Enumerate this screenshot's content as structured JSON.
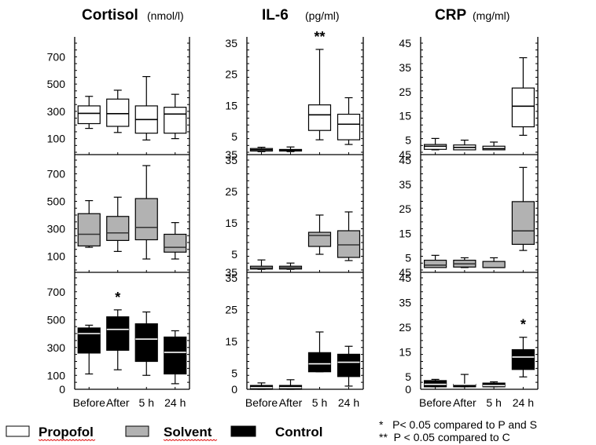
{
  "chart_data": {
    "type": "boxplot",
    "categories": [
      "Before",
      "After",
      "5 h",
      "24 h"
    ],
    "groups": [
      {
        "name": "Propofol",
        "fill": "#ffffff",
        "median_color": "#000000"
      },
      {
        "name": "Solvent",
        "fill": "#b2b2b2",
        "median_color": "#333333"
      },
      {
        "name": "Control",
        "fill": "#000000",
        "median_color": "#ffffff"
      }
    ],
    "panels": [
      {
        "id": "cortisol",
        "title": "Cortisol",
        "unit": "(nmol/l)",
        "ylim": [
          0,
          800
        ],
        "ticks": [
          100,
          300,
          500,
          700
        ],
        "bottom_ticks": [
          0,
          100,
          300,
          500,
          700
        ],
        "top_tick_labels": [
          "700",
          "700"
        ],
        "rows": [
          {
            "group": "Propofol",
            "boxes": [
              {
                "min": 175,
                "q1": 210,
                "median": 285,
                "q3": 340,
                "max": 410
              },
              {
                "min": 145,
                "q1": 190,
                "median": 283,
                "q3": 390,
                "max": 455
              },
              {
                "min": 90,
                "q1": 140,
                "median": 240,
                "q3": 340,
                "max": 555
              },
              {
                "min": 100,
                "q1": 140,
                "median": 280,
                "q3": 330,
                "max": 425
              }
            ],
            "sig": [
              null,
              null,
              null,
              null
            ]
          },
          {
            "group": "Solvent",
            "boxes": [
              {
                "min": 165,
                "q1": 175,
                "median": 260,
                "q3": 410,
                "max": 505
              },
              {
                "min": 135,
                "q1": 215,
                "median": 270,
                "q3": 390,
                "max": 530
              },
              {
                "min": 80,
                "q1": 220,
                "median": 310,
                "q3": 520,
                "max": 760
              },
              {
                "min": 80,
                "q1": 130,
                "median": 165,
                "q3": 260,
                "max": 345
              }
            ],
            "sig": [
              null,
              null,
              null,
              null
            ]
          },
          {
            "group": "Control",
            "boxes": [
              {
                "min": 110,
                "q1": 260,
                "median": 400,
                "q3": 440,
                "max": 460
              },
              {
                "min": 140,
                "q1": 280,
                "median": 430,
                "q3": 520,
                "max": 570
              },
              {
                "min": 100,
                "q1": 200,
                "median": 360,
                "q3": 470,
                "max": 555
              },
              {
                "min": 40,
                "q1": 110,
                "median": 265,
                "q3": 375,
                "max": 420
              }
            ],
            "sig": [
              null,
              "*",
              null,
              null
            ]
          }
        ]
      },
      {
        "id": "il6",
        "title": "IL-6",
        "unit": "(pg/ml)",
        "ylim": [
          0,
          35
        ],
        "ticks": [
          5,
          15,
          25,
          35
        ],
        "bottom_ticks": [
          0,
          5,
          15,
          25,
          35
        ],
        "rows": [
          {
            "group": "Propofol",
            "boxes": [
              {
                "min": 0.2,
                "q1": 0.4,
                "median": 0.8,
                "q3": 1.2,
                "max": 1.6
              },
              {
                "min": 0.2,
                "q1": 0.4,
                "median": 0.7,
                "q3": 0.9,
                "max": 1.7
              },
              {
                "min": 4,
                "q1": 7,
                "median": 12,
                "q3": 15.2,
                "max": 33
              },
              {
                "min": 2.5,
                "q1": 4,
                "median": 9,
                "q3": 12.2,
                "max": 17.5
              }
            ],
            "sig": [
              null,
              null,
              "**",
              null
            ]
          },
          {
            "group": "Solvent",
            "boxes": [
              {
                "min": 0.2,
                "q1": 0.3,
                "median": 0.6,
                "q3": 1.2,
                "max": 3.2
              },
              {
                "min": 0.2,
                "q1": 0.3,
                "median": 0.7,
                "q3": 1.2,
                "max": 2.2
              },
              {
                "min": 5,
                "q1": 7.5,
                "median": 11,
                "q3": 12,
                "max": 17.5
              },
              {
                "min": 3,
                "q1": 4,
                "median": 8,
                "q3": 12.5,
                "max": 18.5
              }
            ],
            "sig": [
              null,
              null,
              null,
              null
            ]
          },
          {
            "group": "Control",
            "boxes": [
              {
                "min": 0,
                "q1": 0,
                "median": 0.5,
                "q3": 1.2,
                "max": 2
              },
              {
                "min": 0,
                "q1": 0,
                "median": 0.5,
                "q3": 1.2,
                "max": 3
              },
              {
                "min": 5.5,
                "q1": 5.5,
                "median": 8,
                "q3": 11.5,
                "max": 18
              },
              {
                "min": 1,
                "q1": 4,
                "median": 8.5,
                "q3": 11,
                "max": 13.5
              }
            ],
            "sig": [
              null,
              null,
              null,
              null
            ]
          }
        ]
      },
      {
        "id": "crp",
        "title": "CRP",
        "unit": "(mg/ml)",
        "ylim": [
          0,
          45
        ],
        "ticks": [
          5,
          15,
          25,
          35,
          45
        ],
        "bottom_ticks": [
          0,
          5,
          15,
          25,
          35,
          45
        ],
        "rows": [
          {
            "group": "Propofol",
            "boxes": [
              {
                "min": 1,
                "q1": 1.2,
                "median": 2.5,
                "q3": 3.2,
                "max": 5.7
              },
              {
                "min": 1,
                "q1": 1,
                "median": 2,
                "q3": 3,
                "max": 5
              },
              {
                "min": 1,
                "q1": 1,
                "median": 1.5,
                "q3": 2.5,
                "max": 4.2
              },
              {
                "min": 7,
                "q1": 10.5,
                "median": 19,
                "q3": 26.5,
                "max": 39
              }
            ],
            "sig": [
              null,
              null,
              null,
              null
            ]
          },
          {
            "group": "Solvent",
            "boxes": [
              {
                "min": 1,
                "q1": 1,
                "median": 2,
                "q3": 4,
                "max": 6
              },
              {
                "min": 1,
                "q1": 1.2,
                "median": 2.5,
                "q3": 4,
                "max": 5
              },
              {
                "min": 1,
                "q1": 1,
                "median": 1,
                "q3": 3.5,
                "max": 5
              },
              {
                "min": 8,
                "q1": 10.5,
                "median": 16,
                "q3": 28,
                "max": 42
              }
            ],
            "sig": [
              null,
              null,
              null,
              null
            ]
          },
          {
            "group": "Control",
            "boxes": [
              {
                "min": 1,
                "q1": 1,
                "median": 2,
                "q3": 3.5,
                "max": 4
              },
              {
                "min": 1,
                "q1": 1,
                "median": 2,
                "q3": 2,
                "max": 6
              },
              {
                "min": 1,
                "q1": 1,
                "median": 1.5,
                "q3": 2.5,
                "max": 3
              },
              {
                "min": 5,
                "q1": 8,
                "median": 13,
                "q3": 16,
                "max": 21
              }
            ],
            "sig": [
              null,
              null,
              null,
              "*"
            ]
          }
        ]
      }
    ],
    "legend": {
      "placement": "bottom",
      "items": [
        {
          "label": "Propofol",
          "fill": "#ffffff"
        },
        {
          "label": "Solvent",
          "fill": "#b2b2b2"
        },
        {
          "label": "Control",
          "fill": "#000000"
        }
      ]
    },
    "annotations": [
      "*   P< 0.05 compared to P and S",
      "**  P < 0.05 compared to C"
    ]
  }
}
